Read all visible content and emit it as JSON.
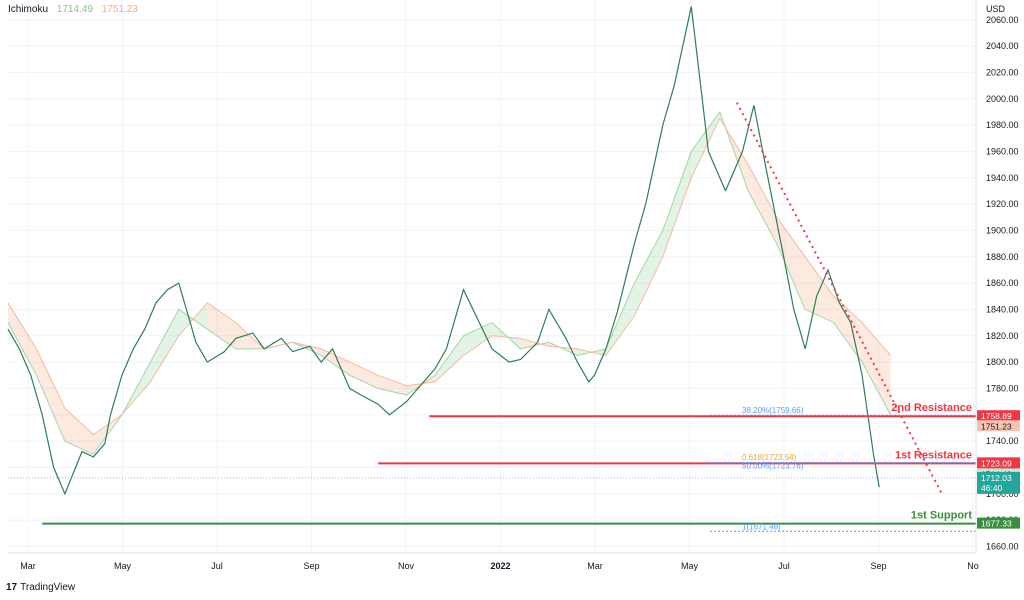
{
  "header": {
    "indicator": "Ichimoku",
    "value_a": "1714.49",
    "value_b": "1751.23",
    "color_a": "#81c784",
    "color_b": "#f5a97f"
  },
  "footer": {
    "brand_mark": "17",
    "brand": "TradingView"
  },
  "chart_data": {
    "type": "line",
    "currency": "USD",
    "ylim": [
      1655,
      2075
    ],
    "y_ticks": [
      1660,
      1680,
      1700,
      1720,
      1740,
      1760,
      1780,
      1800,
      1820,
      1840,
      1860,
      1880,
      1900,
      1920,
      1940,
      1960,
      1980,
      2000,
      2020,
      2040,
      2060
    ],
    "y_tick_labels": [
      "1660.00",
      "1680.00",
      "1700.00",
      "1720.00",
      "1740.00",
      "1760.00",
      "1780.00",
      "1800.00",
      "1820.00",
      "1840.00",
      "1860.00",
      "1880.00",
      "1900.00",
      "1920.00",
      "1940.00",
      "1960.00",
      "1980.00",
      "2000.00",
      "2020.00",
      "2040.00",
      "2060.00"
    ],
    "x_ticks": [
      "Mar",
      "May",
      "Jul",
      "Sep",
      "Nov",
      "2022",
      "Mar",
      "May",
      "Jul",
      "Sep",
      "No"
    ],
    "price_path": {
      "x": [
        0,
        2,
        4,
        6,
        8,
        10,
        13,
        15,
        17,
        18,
        20,
        22,
        24,
        26,
        28,
        30,
        33,
        35,
        38,
        40,
        43,
        45,
        48,
        50,
        53,
        55,
        57,
        60,
        62,
        65,
        67,
        70,
        72,
        75,
        77,
        80,
        85,
        88,
        90,
        93,
        95,
        98,
        100,
        102,
        103,
        105,
        107,
        110,
        112,
        113,
        115,
        117,
        120,
        123,
        126
      ],
      "y": [
        1825,
        1810,
        1790,
        1760,
        1720,
        1700,
        1732,
        1728,
        1738,
        1760,
        1790,
        1810,
        1825,
        1845,
        1855,
        1860,
        1815,
        1800,
        1808,
        1818,
        1822,
        1810,
        1818,
        1808,
        1812,
        1800,
        1810,
        1780,
        1775,
        1768,
        1760,
        1770,
        1780,
        1795,
        1810,
        1855,
        1810,
        1800,
        1802,
        1815,
        1840,
        1818,
        1800,
        1785,
        1790,
        1810,
        1838,
        1890,
        1920,
        1940,
        1980,
        2010,
        2070,
        1960,
        1930
      ]
    },
    "span_a": {
      "x": [
        0,
        5,
        10,
        15,
        20,
        25,
        30,
        35,
        40,
        45,
        50,
        55,
        60,
        65,
        70,
        75,
        80,
        85,
        90,
        95,
        100,
        105,
        110,
        115,
        120,
        125,
        130,
        135,
        140,
        145,
        150,
        155
      ],
      "y": [
        1830,
        1790,
        1740,
        1730,
        1760,
        1800,
        1840,
        1825,
        1810,
        1810,
        1815,
        1805,
        1790,
        1780,
        1775,
        1790,
        1820,
        1830,
        1810,
        1815,
        1805,
        1810,
        1860,
        1900,
        1960,
        1990,
        1930,
        1890,
        1840,
        1830,
        1800,
        1760
      ]
    },
    "span_b": {
      "x": [
        0,
        5,
        10,
        15,
        20,
        25,
        30,
        35,
        40,
        45,
        50,
        55,
        60,
        65,
        70,
        75,
        80,
        85,
        90,
        95,
        100,
        105,
        110,
        115,
        120,
        125,
        130,
        135,
        140,
        145,
        150,
        155
      ],
      "y": [
        1845,
        1810,
        1765,
        1745,
        1760,
        1785,
        1820,
        1845,
        1830,
        1810,
        1815,
        1810,
        1800,
        1790,
        1782,
        1785,
        1805,
        1820,
        1818,
        1812,
        1810,
        1805,
        1835,
        1880,
        1940,
        1985,
        1950,
        1910,
        1880,
        1850,
        1830,
        1805
      ]
    },
    "decline_path": {
      "x": [
        126,
        129,
        131,
        133,
        136,
        138,
        140,
        142,
        144,
        146,
        148,
        150,
        152,
        153
      ],
      "y": [
        1930,
        1960,
        1995,
        1950,
        1885,
        1840,
        1810,
        1850,
        1870,
        1845,
        1830,
        1790,
        1730,
        1705
      ]
    },
    "levels": [
      {
        "name": "2nd Resistance",
        "value": 1758.89,
        "label": "1758.89",
        "color": "#f23645",
        "from_x": 74
      },
      {
        "name": "1st Resistance",
        "value": 1723.09,
        "label": "1723.09",
        "color": "#f23645",
        "from_x": 65
      },
      {
        "name": "1st Support",
        "value": 1677.33,
        "label": "1677.33",
        "color": "#388e3c",
        "from_x": 6
      }
    ],
    "fibs": [
      {
        "text": "38.20%(1759.66)",
        "value": 1759.66,
        "color": "#5b9cf6"
      },
      {
        "text": "0.618(1723.54)",
        "value": 1723.54,
        "color": "#e8a735"
      },
      {
        "text": "50.00%(1723.76)",
        "value": 1723.76,
        "color": "#5b9cf6"
      },
      {
        "text": "1(1671.48)",
        "value": 1671.48,
        "color": "#5b9cf6"
      }
    ],
    "trendline": {
      "x": [
        128,
        164
      ],
      "y": [
        1997,
        1700
      ],
      "color": "#f23645"
    },
    "tags": [
      {
        "label": "1751.23",
        "value": 1751.23,
        "bg": "#f7c4b3",
        "fg": "#131722"
      },
      {
        "label": "1714.49",
        "value": 1714.49,
        "bg": "#c8e6c9",
        "fg": "#131722"
      },
      {
        "label": "1712.03",
        "sub": "46:40",
        "value": 1712.03,
        "bg": "#26a69a",
        "fg": "#ffffff"
      }
    ],
    "current_price": 1712.03
  }
}
